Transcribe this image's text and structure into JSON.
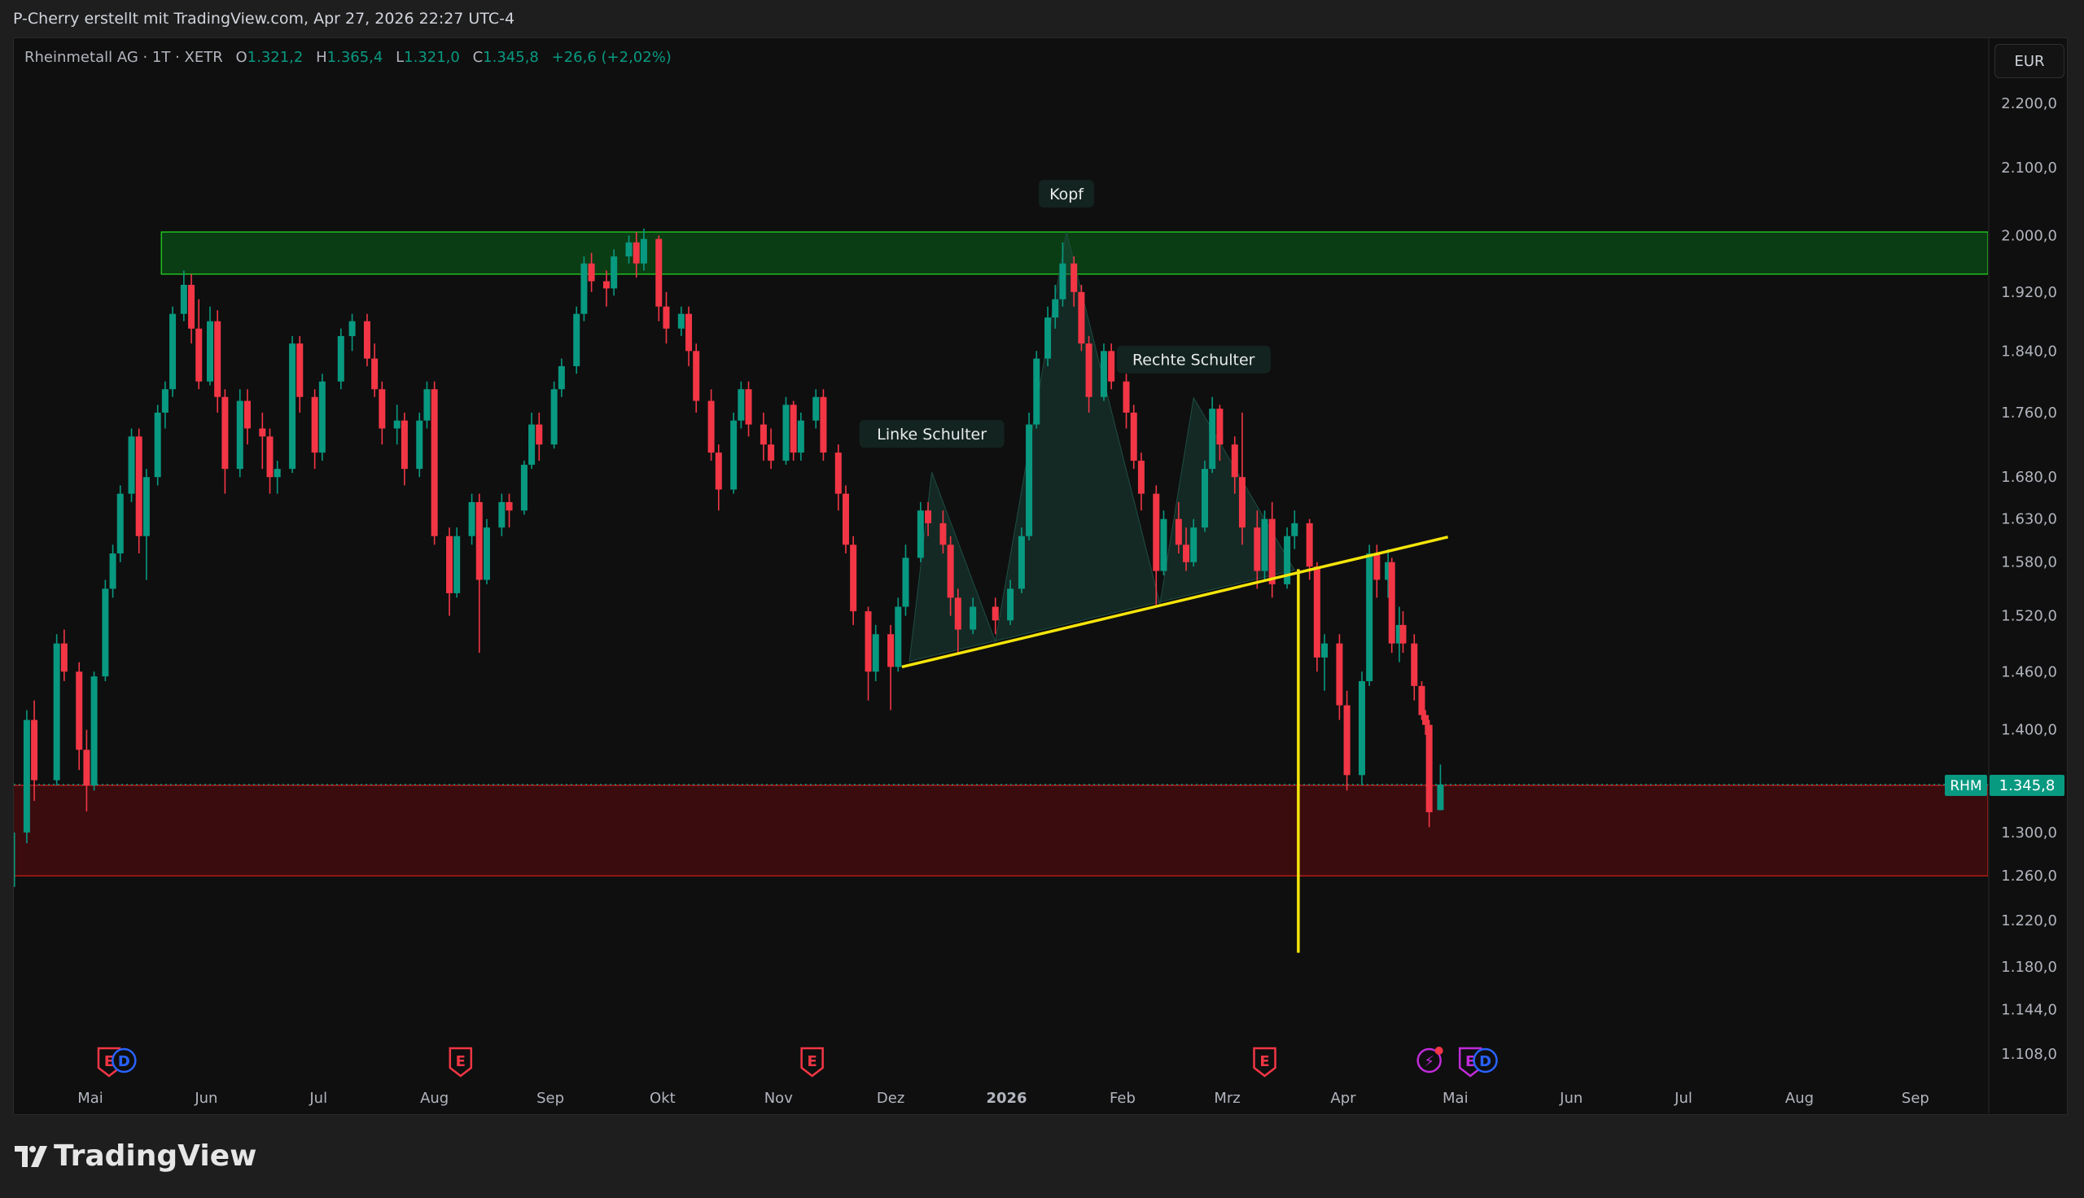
{
  "header": {
    "credit": "P-Cherry erstellt mit TradingView.com, Apr 27, 2026 22:27 UTC-4"
  },
  "legend": {
    "symbol": "Rheinmetall AG · 1T · XETR",
    "o_label": "O",
    "o": "1.321,2",
    "h_label": "H",
    "h": "1.365,4",
    "l_label": "L",
    "l": "1.321,0",
    "c_label": "C",
    "c": "1.345,8",
    "change": "+26,6 (+2,02%)"
  },
  "currency": "EUR",
  "price_badge": {
    "ticker": "RHM",
    "price": "1.345,8"
  },
  "footer": {
    "logo_text": "TradingView"
  },
  "colors": {
    "up": "#089981",
    "down": "#f23645",
    "neckline": "#f5e50a",
    "resistance_zone": "#0b3d14",
    "support_zone": "#3a0c0e"
  },
  "chart_data": {
    "type": "candlestick",
    "scale": "log",
    "ylim": [
      1090,
      2240
    ],
    "xlim": [
      "2025-04-08",
      "2026-09-20"
    ],
    "grid": false,
    "y_ticks": [
      {
        "value": 2200,
        "label": "2.200,0"
      },
      {
        "value": 2100,
        "label": "2.100,0"
      },
      {
        "value": 2000,
        "label": "2.000,0"
      },
      {
        "value": 1920,
        "label": "1.920,0"
      },
      {
        "value": 1840,
        "label": "1.840,0"
      },
      {
        "value": 1760,
        "label": "1.760,0"
      },
      {
        "value": 1680,
        "label": "1.680,0"
      },
      {
        "value": 1630,
        "label": "1.630,0"
      },
      {
        "value": 1580,
        "label": "1.580,0"
      },
      {
        "value": 1520,
        "label": "1.520,0"
      },
      {
        "value": 1460,
        "label": "1.460,0"
      },
      {
        "value": 1400,
        "label": "1.400,0"
      },
      {
        "value": 1300,
        "label": "1.300,0"
      },
      {
        "value": 1260,
        "label": "1.260,0"
      },
      {
        "value": 1220,
        "label": "1.220,0"
      },
      {
        "value": 1180,
        "label": "1.180,0"
      },
      {
        "value": 1144,
        "label": "1.144,0"
      },
      {
        "value": 1108,
        "label": "1.108,0"
      }
    ],
    "x_ticks": [
      {
        "date": "2025-05-01",
        "label": "Mai"
      },
      {
        "date": "2025-06-01",
        "label": "Jun"
      },
      {
        "date": "2025-07-01",
        "label": "Jul"
      },
      {
        "date": "2025-08-01",
        "label": "Aug"
      },
      {
        "date": "2025-09-01",
        "label": "Sep"
      },
      {
        "date": "2025-10-01",
        "label": "Okt"
      },
      {
        "date": "2025-11-01",
        "label": "Nov"
      },
      {
        "date": "2025-12-01",
        "label": "Dez"
      },
      {
        "date": "2026-01-01",
        "label": "2026",
        "bold": true
      },
      {
        "date": "2026-02-01",
        "label": "Feb"
      },
      {
        "date": "2026-03-01",
        "label": "Mrz"
      },
      {
        "date": "2026-04-01",
        "label": "Apr"
      },
      {
        "date": "2026-05-01",
        "label": "Mai"
      },
      {
        "date": "2026-06-01",
        "label": "Jun"
      },
      {
        "date": "2026-07-01",
        "label": "Jul"
      },
      {
        "date": "2026-08-01",
        "label": "Aug"
      },
      {
        "date": "2026-09-01",
        "label": "Sep"
      }
    ],
    "last_price": 1345.8,
    "candles": [
      [
        "2025-04-10",
        1250,
        1320,
        1240,
        1300
      ],
      [
        "2025-04-14",
        1300,
        1420,
        1290,
        1410
      ],
      [
        "2025-04-16",
        1410,
        1430,
        1330,
        1350
      ],
      [
        "2025-04-22",
        1350,
        1500,
        1345,
        1490
      ],
      [
        "2025-04-24",
        1490,
        1505,
        1450,
        1460
      ],
      [
        "2025-04-28",
        1460,
        1470,
        1360,
        1380
      ],
      [
        "2025-04-30",
        1380,
        1400,
        1320,
        1345
      ],
      [
        "2025-05-02",
        1345,
        1460,
        1340,
        1455
      ],
      [
        "2025-05-05",
        1455,
        1560,
        1450,
        1550
      ],
      [
        "2025-05-07",
        1550,
        1600,
        1540,
        1590
      ],
      [
        "2025-05-09",
        1590,
        1670,
        1580,
        1660
      ],
      [
        "2025-05-12",
        1660,
        1740,
        1650,
        1730
      ],
      [
        "2025-05-14",
        1730,
        1740,
        1590,
        1610
      ],
      [
        "2025-05-16",
        1610,
        1690,
        1560,
        1680
      ],
      [
        "2025-05-19",
        1680,
        1770,
        1670,
        1760
      ],
      [
        "2025-05-21",
        1760,
        1800,
        1740,
        1790
      ],
      [
        "2025-05-23",
        1790,
        1900,
        1780,
        1890
      ],
      [
        "2025-05-26",
        1890,
        1950,
        1880,
        1930
      ],
      [
        "2025-05-28",
        1930,
        1945,
        1850,
        1870
      ],
      [
        "2025-05-30",
        1870,
        1910,
        1790,
        1800
      ],
      [
        "2025-06-02",
        1800,
        1900,
        1795,
        1880
      ],
      [
        "2025-06-04",
        1880,
        1895,
        1760,
        1780
      ],
      [
        "2025-06-06",
        1780,
        1790,
        1660,
        1690
      ],
      [
        "2025-06-10",
        1690,
        1790,
        1680,
        1775
      ],
      [
        "2025-06-12",
        1775,
        1790,
        1720,
        1740
      ],
      [
        "2025-06-16",
        1740,
        1760,
        1690,
        1730
      ],
      [
        "2025-06-18",
        1730,
        1740,
        1660,
        1680
      ],
      [
        "2025-06-20",
        1680,
        1700,
        1660,
        1690
      ],
      [
        "2025-06-24",
        1690,
        1860,
        1685,
        1850
      ],
      [
        "2025-06-26",
        1850,
        1860,
        1760,
        1780
      ],
      [
        "2025-06-30",
        1780,
        1790,
        1690,
        1710
      ],
      [
        "2025-07-02",
        1710,
        1810,
        1700,
        1800
      ],
      [
        "2025-07-07",
        1800,
        1870,
        1790,
        1860
      ],
      [
        "2025-07-10",
        1860,
        1890,
        1840,
        1880
      ],
      [
        "2025-07-14",
        1880,
        1890,
        1820,
        1830
      ],
      [
        "2025-07-16",
        1830,
        1850,
        1780,
        1790
      ],
      [
        "2025-07-18",
        1790,
        1800,
        1720,
        1740
      ],
      [
        "2025-07-22",
        1740,
        1770,
        1720,
        1750
      ],
      [
        "2025-07-24",
        1750,
        1760,
        1670,
        1690
      ],
      [
        "2025-07-28",
        1690,
        1760,
        1680,
        1750
      ],
      [
        "2025-07-30",
        1750,
        1800,
        1740,
        1790
      ],
      [
        "2025-08-01",
        1790,
        1800,
        1600,
        1610
      ],
      [
        "2025-08-05",
        1610,
        1620,
        1520,
        1545
      ],
      [
        "2025-08-07",
        1545,
        1620,
        1540,
        1610
      ],
      [
        "2025-08-11",
        1610,
        1660,
        1600,
        1650
      ],
      [
        "2025-08-13",
        1650,
        1660,
        1480,
        1560
      ],
      [
        "2025-08-15",
        1560,
        1630,
        1555,
        1620
      ],
      [
        "2025-08-19",
        1620,
        1660,
        1610,
        1650
      ],
      [
        "2025-08-21",
        1650,
        1660,
        1620,
        1640
      ],
      [
        "2025-08-25",
        1640,
        1700,
        1635,
        1695
      ],
      [
        "2025-08-27",
        1695,
        1760,
        1690,
        1745
      ],
      [
        "2025-08-29",
        1745,
        1760,
        1700,
        1720
      ],
      [
        "2025-09-02",
        1720,
        1800,
        1715,
        1790
      ],
      [
        "2025-09-04",
        1790,
        1830,
        1780,
        1820
      ],
      [
        "2025-09-08",
        1820,
        1900,
        1810,
        1890
      ],
      [
        "2025-09-10",
        1890,
        1970,
        1880,
        1960
      ],
      [
        "2025-09-12",
        1960,
        1975,
        1920,
        1935
      ],
      [
        "2025-09-16",
        1935,
        1950,
        1900,
        1925
      ],
      [
        "2025-09-18",
        1925,
        1980,
        1915,
        1970
      ],
      [
        "2025-09-22",
        1970,
        2000,
        1960,
        1990
      ],
      [
        "2025-09-24",
        1990,
        2005,
        1940,
        1960
      ],
      [
        "2025-09-26",
        1960,
        2010,
        1950,
        1995
      ],
      [
        "2025-09-30",
        1995,
        2000,
        1880,
        1900
      ],
      [
        "2025-10-02",
        1900,
        1920,
        1850,
        1870
      ],
      [
        "2025-10-06",
        1870,
        1900,
        1860,
        1890
      ],
      [
        "2025-10-08",
        1890,
        1900,
        1820,
        1840
      ],
      [
        "2025-10-10",
        1840,
        1850,
        1760,
        1775
      ],
      [
        "2025-10-14",
        1775,
        1790,
        1700,
        1710
      ],
      [
        "2025-10-16",
        1710,
        1720,
        1640,
        1665
      ],
      [
        "2025-10-20",
        1665,
        1760,
        1660,
        1750
      ],
      [
        "2025-10-22",
        1750,
        1800,
        1740,
        1790
      ],
      [
        "2025-10-24",
        1790,
        1800,
        1730,
        1745
      ],
      [
        "2025-10-28",
        1745,
        1760,
        1700,
        1720
      ],
      [
        "2025-10-30",
        1720,
        1740,
        1690,
        1700
      ],
      [
        "2025-11-03",
        1700,
        1780,
        1695,
        1770
      ],
      [
        "2025-11-05",
        1770,
        1775,
        1700,
        1710
      ],
      [
        "2025-11-07",
        1710,
        1760,
        1700,
        1750
      ],
      [
        "2025-11-11",
        1750,
        1790,
        1740,
        1780
      ],
      [
        "2025-11-13",
        1780,
        1790,
        1700,
        1710
      ],
      [
        "2025-11-17",
        1710,
        1720,
        1640,
        1660
      ],
      [
        "2025-11-19",
        1660,
        1670,
        1590,
        1600
      ],
      [
        "2025-11-21",
        1600,
        1610,
        1510,
        1525
      ],
      [
        "2025-11-25",
        1525,
        1530,
        1430,
        1460
      ],
      [
        "2025-11-27",
        1460,
        1510,
        1450,
        1500
      ],
      [
        "2025-12-01",
        1500,
        1510,
        1420,
        1465
      ],
      [
        "2025-12-03",
        1465,
        1540,
        1460,
        1530
      ],
      [
        "2025-12-05",
        1530,
        1600,
        1520,
        1585
      ],
      [
        "2025-12-09",
        1585,
        1650,
        1580,
        1640
      ],
      [
        "2025-12-11",
        1640,
        1650,
        1610,
        1625
      ],
      [
        "2025-12-15",
        1625,
        1640,
        1590,
        1600
      ],
      [
        "2025-12-17",
        1600,
        1610,
        1520,
        1540
      ],
      [
        "2025-12-19",
        1540,
        1550,
        1480,
        1505
      ],
      [
        "2025-12-23",
        1505,
        1540,
        1500,
        1530
      ],
      [
        "2025-12-29",
        1530,
        1540,
        1500,
        1515
      ],
      [
        "2026-01-02",
        1515,
        1560,
        1510,
        1550
      ],
      [
        "2026-01-05",
        1550,
        1620,
        1545,
        1610
      ],
      [
        "2026-01-07",
        1610,
        1760,
        1605,
        1745
      ],
      [
        "2026-01-09",
        1745,
        1840,
        1740,
        1830
      ],
      [
        "2026-01-12",
        1830,
        1900,
        1820,
        1885
      ],
      [
        "2026-01-14",
        1885,
        1930,
        1870,
        1910
      ],
      [
        "2026-01-16",
        1910,
        1990,
        1900,
        1960
      ],
      [
        "2026-01-19",
        1960,
        1970,
        1900,
        1920
      ],
      [
        "2026-01-21",
        1920,
        1930,
        1840,
        1850
      ],
      [
        "2026-01-23",
        1850,
        1860,
        1760,
        1780
      ],
      [
        "2026-01-27",
        1780,
        1850,
        1775,
        1840
      ],
      [
        "2026-01-29",
        1840,
        1850,
        1790,
        1800
      ],
      [
        "2026-02-02",
        1800,
        1810,
        1740,
        1760
      ],
      [
        "2026-02-04",
        1760,
        1770,
        1690,
        1700
      ],
      [
        "2026-02-06",
        1700,
        1710,
        1640,
        1660
      ],
      [
        "2026-02-10",
        1660,
        1670,
        1530,
        1570
      ],
      [
        "2026-02-12",
        1570,
        1640,
        1565,
        1630
      ],
      [
        "2026-02-16",
        1630,
        1650,
        1590,
        1600
      ],
      [
        "2026-02-18",
        1600,
        1620,
        1570,
        1580
      ],
      [
        "2026-02-20",
        1580,
        1630,
        1575,
        1620
      ],
      [
        "2026-02-23",
        1620,
        1700,
        1615,
        1690
      ],
      [
        "2026-02-25",
        1690,
        1780,
        1685,
        1765
      ],
      [
        "2026-02-27",
        1765,
        1770,
        1700,
        1720
      ],
      [
        "2026-03-03",
        1720,
        1730,
        1660,
        1680
      ],
      [
        "2026-03-05",
        1680,
        1760,
        1600,
        1620
      ],
      [
        "2026-03-09",
        1620,
        1640,
        1550,
        1570
      ],
      [
        "2026-03-11",
        1570,
        1640,
        1560,
        1630
      ],
      [
        "2026-03-13",
        1630,
        1650,
        1540,
        1555
      ],
      [
        "2026-03-17",
        1555,
        1620,
        1550,
        1610
      ],
      [
        "2026-03-19",
        1610,
        1640,
        1595,
        1625
      ],
      [
        "2026-03-23",
        1625,
        1630,
        1560,
        1575
      ],
      [
        "2026-03-25",
        1575,
        1580,
        1460,
        1475
      ],
      [
        "2026-03-27",
        1475,
        1500,
        1440,
        1490
      ],
      [
        "2026-03-31",
        1490,
        1500,
        1410,
        1425
      ],
      [
        "2026-04-02",
        1425,
        1440,
        1340,
        1355
      ],
      [
        "2026-04-06",
        1355,
        1460,
        1345,
        1450
      ],
      [
        "2026-04-08",
        1450,
        1600,
        1445,
        1590
      ],
      [
        "2026-04-10",
        1590,
        1600,
        1540,
        1560
      ],
      [
        "2026-04-13",
        1560,
        1595,
        1540,
        1580
      ],
      [
        "2026-04-14",
        1580,
        1585,
        1480,
        1490
      ],
      [
        "2026-04-16",
        1490,
        1530,
        1470,
        1510
      ],
      [
        "2026-04-17",
        1510,
        1525,
        1480,
        1490
      ],
      [
        "2026-04-20",
        1490,
        1500,
        1430,
        1445
      ],
      [
        "2026-04-22",
        1445,
        1450,
        1410,
        1415
      ],
      [
        "2026-04-23",
        1415,
        1420,
        1395,
        1405
      ],
      [
        "2026-04-24",
        1405,
        1410,
        1305,
        1319.2
      ],
      [
        "2026-04-27",
        1321.2,
        1365.4,
        1321.0,
        1345.8
      ]
    ],
    "zones": [
      {
        "name": "resistance",
        "from": "2025-05-20",
        "top": 2005,
        "bottom": 1945
      },
      {
        "name": "support",
        "from": "2025-04-08",
        "top": 1345,
        "bottom": 1260
      }
    ],
    "pattern": {
      "points": [
        {
          "date": "2025-12-06",
          "price": 1471
        },
        {
          "date": "2025-12-12",
          "price": 1686
        },
        {
          "date": "2025-12-29",
          "price": 1492
        },
        {
          "date": "2026-01-17",
          "price": 2005
        },
        {
          "date": "2026-02-11",
          "price": 1533
        },
        {
          "date": "2026-02-20",
          "price": 1779
        },
        {
          "date": "2026-03-19",
          "price": 1571
        }
      ],
      "labels": [
        {
          "text": "Linke Schulter",
          "date": "2025-12-12",
          "price": 1686
        },
        {
          "text": "Kopf",
          "date": "2026-01-17",
          "price": 2005
        },
        {
          "text": "Rechte Schulter",
          "date": "2026-02-20",
          "price": 1779
        }
      ]
    },
    "neckline": [
      {
        "date": "2025-12-04",
        "price": 1465
      },
      {
        "date": "2026-04-29",
        "price": 1609
      }
    ],
    "target_line": [
      {
        "date": "2026-03-20",
        "price": 1572
      },
      {
        "date": "2026-03-20",
        "price": 1192
      }
    ],
    "events": [
      {
        "type": "E",
        "date": "2025-05-06",
        "color": "#f23645"
      },
      {
        "type": "D",
        "date": "2025-05-10",
        "color": "#2962ff"
      },
      {
        "type": "E",
        "date": "2025-08-08",
        "color": "#f23645"
      },
      {
        "type": "E",
        "date": "2025-11-10",
        "color": "#f23645"
      },
      {
        "type": "E",
        "date": "2026-03-11",
        "color": "#f23645"
      },
      {
        "type": "⚡",
        "date": "2026-04-24",
        "color": "#c02bd8"
      },
      {
        "type": "E",
        "date": "2026-05-05",
        "color": "#c02bd8"
      },
      {
        "type": "D",
        "date": "2026-05-09",
        "color": "#2962ff"
      }
    ]
  }
}
